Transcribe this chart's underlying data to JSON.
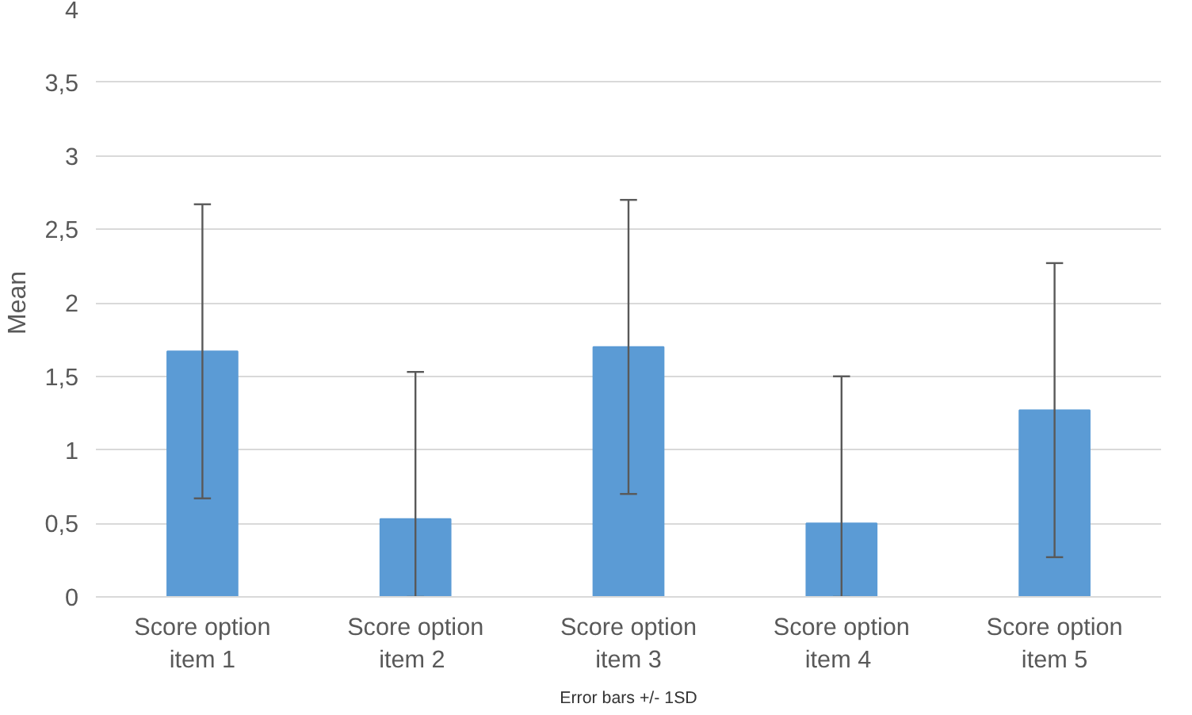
{
  "chart_data": {
    "type": "bar",
    "ylabel": "Mean",
    "categories": [
      "Score option\nitem 1",
      "Score option\nitem  2",
      "Score option\nitem 3",
      "Score option\nitem  4",
      "Score option\nitem 5"
    ],
    "values": [
      1.67,
      0.53,
      1.7,
      0.5,
      1.27
    ],
    "errors": [
      [
        0.67,
        2.67
      ],
      [
        0,
        1.53
      ],
      [
        0.7,
        2.7
      ],
      [
        0,
        1.5
      ],
      [
        0.27,
        2.27
      ]
    ],
    "color": "#5b9bd5",
    "ylim": [
      0,
      4
    ],
    "yticks": [
      0,
      {
        "value": 0.5,
        "label": "0,5"
      },
      1,
      {
        "value": 1.5,
        "label": "1,5"
      },
      2,
      {
        "value": 2.5,
        "label": "2,5"
      },
      3,
      {
        "value": 3.5,
        "label": "3,5"
      },
      4
    ],
    "grid": "y",
    "annotations": [
      "Error bars +/- 1SD"
    ]
  }
}
